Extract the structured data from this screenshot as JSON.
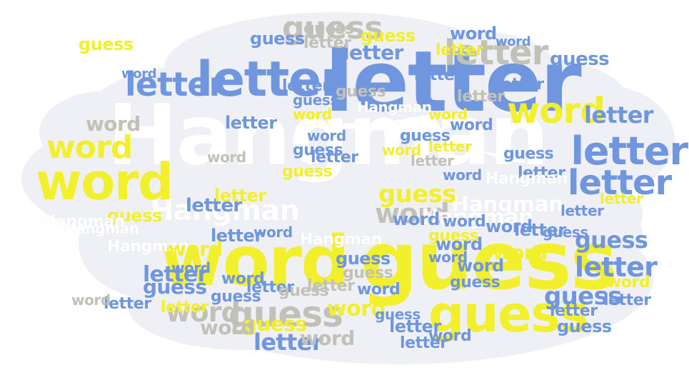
{
  "colors": {
    "background": "#ffffff",
    "cloud_fill": "#eef0f5",
    "blue": "#6f96df",
    "yellow": "#f2ef2c",
    "gray": "#c2c1b8",
    "white": "#ffffff"
  },
  "words": [
    {
      "text": "Hangman",
      "color": "white"
    },
    {
      "text": "letter",
      "color": "blue"
    },
    {
      "text": "guess",
      "color": "yellow"
    },
    {
      "text": "word",
      "color": "yellow"
    },
    {
      "text": "guess",
      "color": "yellow"
    },
    {
      "text": "Hangman",
      "color": "white"
    },
    {
      "text": "Hangman",
      "color": "white"
    },
    {
      "text": "letter",
      "color": "blue"
    },
    {
      "text": "word",
      "color": "yellow"
    },
    {
      "text": "letter",
      "color": "blue"
    },
    {
      "text": "letter",
      "color": "blue"
    },
    {
      "text": "guess",
      "color": "gray"
    },
    {
      "text": "word",
      "color": "yellow"
    },
    {
      "text": "letter",
      "color": "gray"
    },
    {
      "text": "letter",
      "color": "blue"
    },
    {
      "text": "guess",
      "color": "blue"
    },
    {
      "text": "word",
      "color": "yellow"
    },
    {
      "text": "letter",
      "color": "blue"
    },
    {
      "text": "word",
      "color": "gray"
    },
    {
      "text": "guess",
      "color": "gray"
    },
    {
      "text": "word",
      "color": "gray"
    },
    {
      "text": "guess",
      "color": "yellow"
    },
    {
      "text": "guess",
      "color": "blue"
    },
    {
      "text": "letter",
      "color": "blue"
    },
    {
      "text": "word",
      "color": "yellow"
    },
    {
      "text": "word",
      "color": "gray"
    },
    {
      "text": "letter",
      "color": "blue"
    },
    {
      "text": "word",
      "color": "gray"
    },
    {
      "text": "guess",
      "color": "yellow"
    },
    {
      "text": "word",
      "color": "gray"
    },
    {
      "text": "Hangman",
      "color": "white"
    },
    {
      "text": "guess",
      "color": "blue"
    },
    {
      "text": "letter",
      "color": "blue"
    },
    {
      "text": "Hangman",
      "color": "white"
    },
    {
      "text": "word",
      "color": "yellow"
    },
    {
      "text": "guess",
      "color": "blue"
    },
    {
      "text": "guess",
      "color": "yellow"
    },
    {
      "text": "letter",
      "color": "blue"
    },
    {
      "text": "guess",
      "color": "blue"
    },
    {
      "text": "word",
      "color": "blue"
    },
    {
      "text": "word",
      "color": "yellow"
    },
    {
      "text": "letter",
      "color": "blue"
    },
    {
      "text": "word",
      "color": "blue"
    },
    {
      "text": "letter",
      "color": "yellow"
    },
    {
      "text": "guess",
      "color": "gray"
    },
    {
      "text": "letter",
      "color": "gray"
    },
    {
      "text": "word",
      "color": "blue"
    },
    {
      "text": "guess",
      "color": "blue"
    },
    {
      "text": "letter",
      "color": "blue"
    },
    {
      "text": "guess",
      "color": "yellow"
    },
    {
      "text": "letter",
      "color": "blue"
    },
    {
      "text": "word",
      "color": "blue"
    },
    {
      "text": "word",
      "color": "blue"
    },
    {
      "text": "word",
      "color": "yellow"
    },
    {
      "text": "guess",
      "color": "blue"
    },
    {
      "text": "letter",
      "color": "blue"
    },
    {
      "text": "guess",
      "color": "yellow"
    },
    {
      "text": "letter",
      "color": "blue"
    },
    {
      "text": "letter",
      "color": "blue"
    },
    {
      "text": "guess",
      "color": "yellow"
    },
    {
      "text": "word",
      "color": "blue"
    },
    {
      "text": "word",
      "color": "blue"
    },
    {
      "text": "word",
      "color": "blue"
    },
    {
      "text": "letter",
      "color": "blue"
    },
    {
      "text": "guess",
      "color": "blue"
    },
    {
      "text": "word",
      "color": "blue"
    },
    {
      "text": "word",
      "color": "blue"
    },
    {
      "text": "letter",
      "color": "blue"
    },
    {
      "text": "word",
      "color": "blue"
    },
    {
      "text": "letter",
      "color": "yellow"
    },
    {
      "text": "guess",
      "color": "blue"
    },
    {
      "text": "word",
      "color": "blue"
    },
    {
      "text": "letter",
      "color": "yellow"
    },
    {
      "text": "guess",
      "color": "blue"
    },
    {
      "text": "letter",
      "color": "yellow"
    },
    {
      "text": "letter",
      "color": "blue"
    },
    {
      "text": "letter",
      "color": "blue"
    },
    {
      "text": "word",
      "color": "yellow"
    },
    {
      "text": "letter",
      "color": "blue"
    },
    {
      "text": "guess",
      "color": "blue"
    },
    {
      "text": "word",
      "color": "blue"
    },
    {
      "text": "letter",
      "color": "blue"
    },
    {
      "text": "guess",
      "color": "gray"
    },
    {
      "text": "letter",
      "color": "gray"
    },
    {
      "text": "guess",
      "color": "gray"
    },
    {
      "text": "word",
      "color": "blue"
    },
    {
      "text": "guess",
      "color": "blue"
    },
    {
      "text": "letter",
      "color": "blue"
    },
    {
      "text": "word",
      "color": "yellow"
    },
    {
      "text": "letter",
      "color": "gray"
    },
    {
      "text": "guess",
      "color": "blue"
    },
    {
      "text": "word",
      "color": "blue"
    },
    {
      "text": "letter",
      "color": "yellow"
    },
    {
      "text": "guess",
      "color": "blue"
    },
    {
      "text": "letter",
      "color": "blue"
    },
    {
      "text": "word",
      "color": "blue"
    },
    {
      "text": "word",
      "color": "yellow"
    },
    {
      "text": "letter",
      "color": "gray"
    },
    {
      "text": "guess",
      "color": "blue"
    },
    {
      "text": "guess",
      "color": "yellow"
    },
    {
      "text": "letter",
      "color": "blue"
    },
    {
      "text": "word",
      "color": "blue"
    },
    {
      "text": "Hangman",
      "color": "white"
    },
    {
      "text": "Hangman",
      "color": "white"
    },
    {
      "text": "Hangman",
      "color": "white"
    },
    {
      "text": "Hangman",
      "color": "white"
    },
    {
      "text": "Hangman",
      "color": "white"
    },
    {
      "text": "word",
      "color": "gray"
    },
    {
      "text": "letter",
      "color": "blue"
    },
    {
      "text": "word",
      "color": "gray"
    },
    {
      "text": "guess",
      "color": "gray"
    }
  ]
}
